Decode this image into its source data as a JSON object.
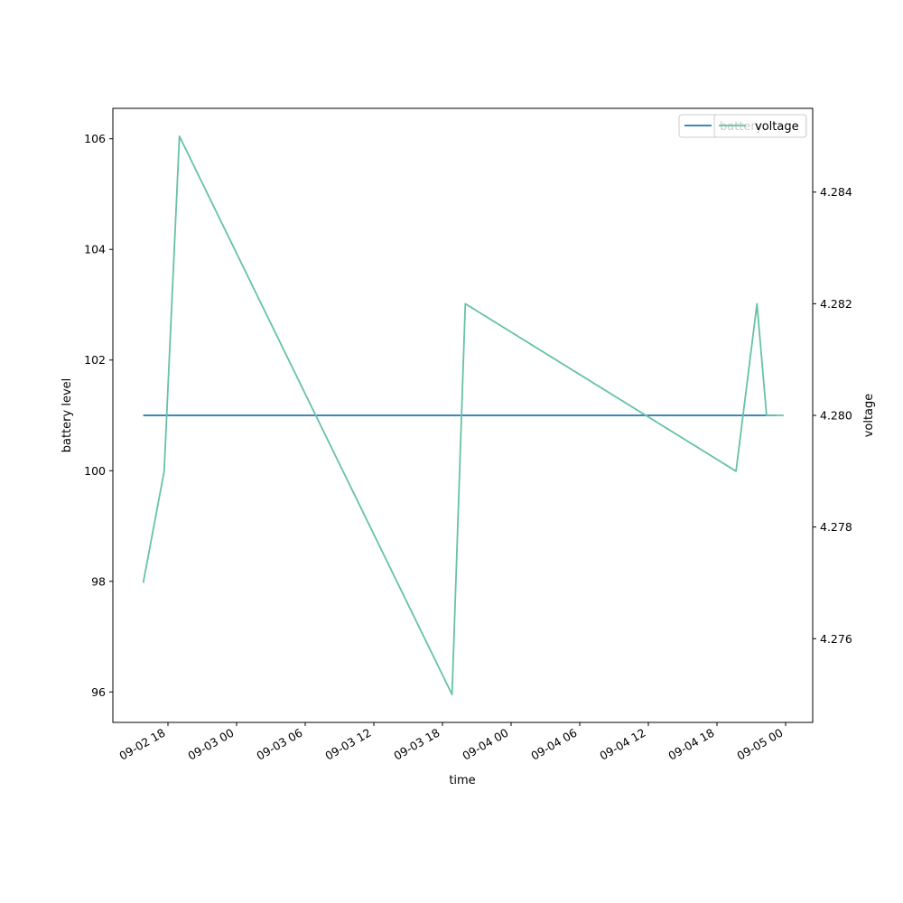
{
  "chart_data": {
    "type": "line",
    "xlabel": "time",
    "ylabel_left": "battery level",
    "ylabel_right": "voltage",
    "x_tick_labels": [
      "09-02 18",
      "09-03 00",
      "09-03 06",
      "09-03 12",
      "09-03 18",
      "09-04 00",
      "09-04 06",
      "09-04 12",
      "09-04 18",
      "09-05 00"
    ],
    "left_axis": {
      "ylim": [
        95.45,
        106.55
      ],
      "ticks": [
        96,
        98,
        100,
        102,
        104,
        106
      ]
    },
    "right_axis": {
      "ylim": [
        4.2745,
        4.2855
      ],
      "ticks": [
        "4.276",
        "4.278",
        "4.280",
        "4.282",
        "4.284"
      ]
    },
    "series": [
      {
        "name": "battery",
        "axis": "left",
        "color": "#1f77b4",
        "x": [
          "2024-09-02 15:50",
          "2024-09-04 23:10"
        ],
        "values": [
          101,
          101
        ]
      },
      {
        "name": "voltage",
        "axis": "right",
        "color": "#66c2a5",
        "x": [
          "2024-09-02 15:50",
          "2024-09-02 17:40",
          "2024-09-02 19:00",
          "2024-09-03 18:50",
          "2024-09-03 20:00",
          "2024-09-04 19:40",
          "2024-09-04 21:30",
          "2024-09-04 22:20",
          "2024-09-04 23:50"
        ],
        "values": [
          4.277,
          4.279,
          4.285,
          4.275,
          4.282,
          4.279,
          4.282,
          4.28,
          4.28
        ]
      }
    ],
    "legend": [
      {
        "label": "battery",
        "color": "#1f77b4"
      },
      {
        "label": "voltage",
        "color": "#66c2a5"
      }
    ],
    "legend_position": "top-right",
    "grid": false
  }
}
